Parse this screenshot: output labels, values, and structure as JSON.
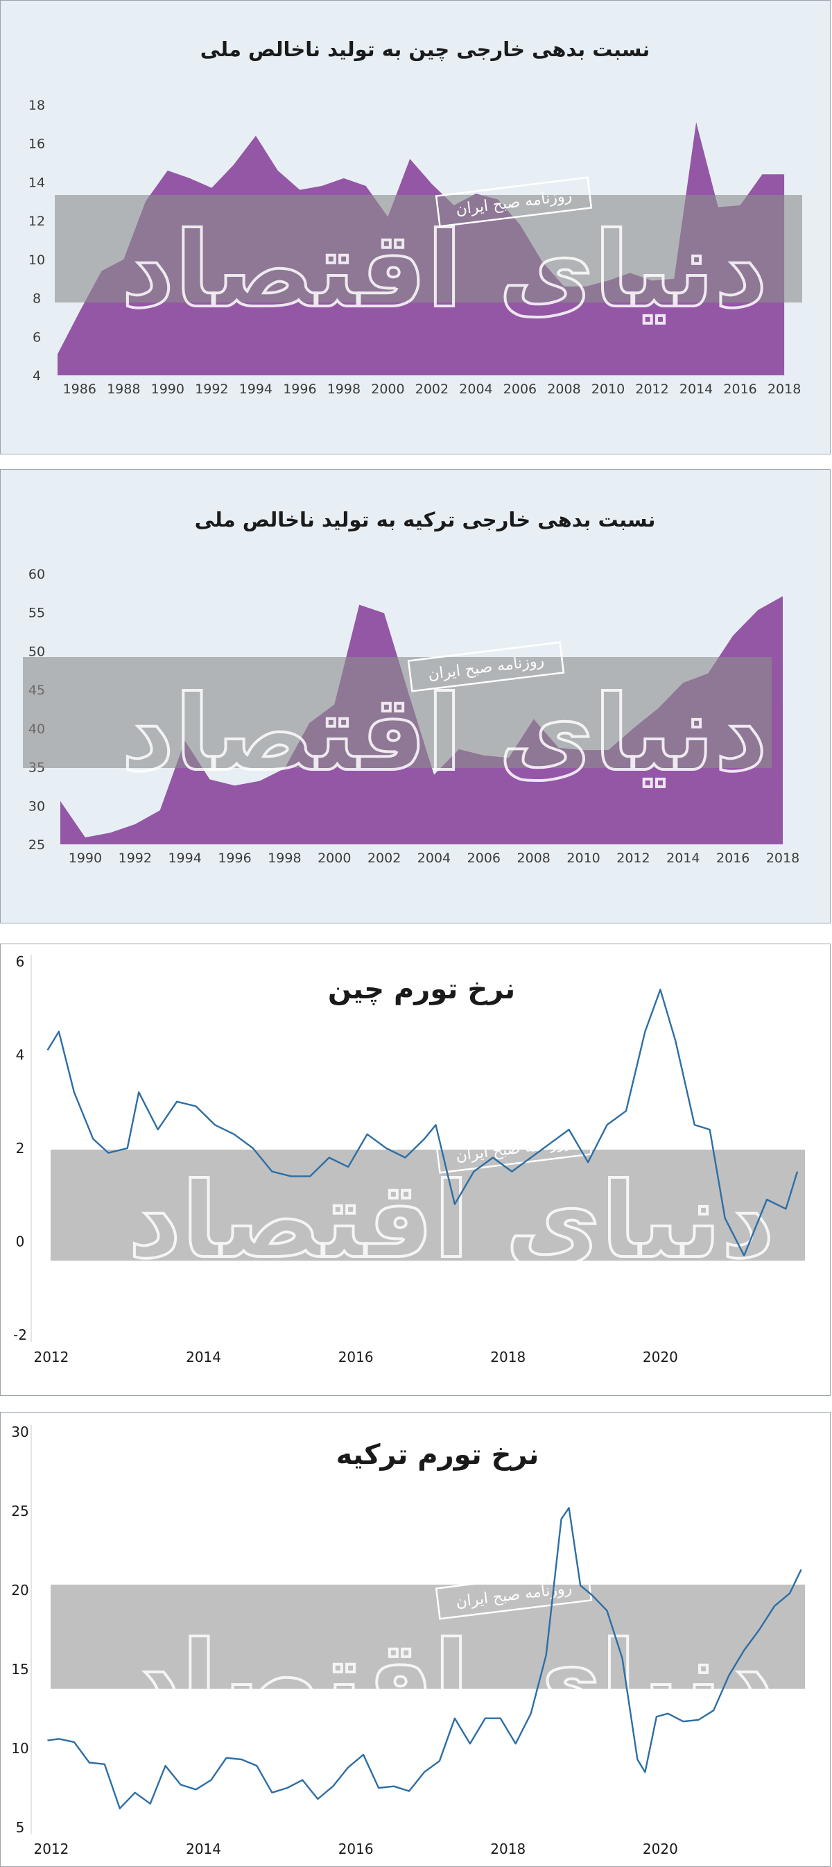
{
  "watermark": {
    "text": "دنیای اقتصاد",
    "tag": "روزنامه صبح ایران",
    "band_color": "#8c8c8c"
  },
  "chart_data": [
    {
      "type": "area",
      "title": "نسبت بدهی خارجی چین به تولید ناخالص ملی",
      "xlabel": "",
      "ylabel": "",
      "color": "#8b4a9e",
      "background": "#e8eff4",
      "ylim": [
        4,
        18
      ],
      "xlim": [
        1985,
        2018.5
      ],
      "y_ticks": [
        "4",
        "6",
        "8",
        "10",
        "12",
        "14",
        "16",
        "18"
      ],
      "x_ticks": [
        "1986",
        "1988",
        "1990",
        "1992",
        "1994",
        "1996",
        "1998",
        "2000",
        "2002",
        "2004",
        "2006",
        "2008",
        "2010",
        "2012",
        "2014",
        "2016",
        "2018"
      ],
      "x": [
        1985,
        1986,
        1987,
        1988,
        1989,
        1990,
        1991,
        1992,
        1993,
        1994,
        1995,
        1996,
        1997,
        1998,
        1999,
        2000,
        2001,
        2002,
        2003,
        2004,
        2005,
        2006,
        2007,
        2008,
        2009,
        2010,
        2011,
        2012,
        2013,
        2014,
        2015,
        2016,
        2017,
        2018
      ],
      "values": [
        5.1,
        7.3,
        9.4,
        10.0,
        13.0,
        14.6,
        14.2,
        13.7,
        14.9,
        16.4,
        14.6,
        13.6,
        13.8,
        14.2,
        13.8,
        12.2,
        15.2,
        13.9,
        12.8,
        13.4,
        13.1,
        11.8,
        9.9,
        8.6,
        8.6,
        8.9,
        9.3,
        8.9,
        9.0,
        17.1,
        12.7,
        12.8,
        14.4,
        14.4
      ]
    },
    {
      "type": "area",
      "title": "نسبت بدهی خارجی ترکیه به تولید ناخالص ملی",
      "xlabel": "",
      "ylabel": "",
      "color": "#8b4a9e",
      "background": "#e8eff4",
      "ylim": [
        25,
        60
      ],
      "xlim": [
        1989,
        2018.5
      ],
      "y_ticks": [
        "25",
        "30",
        "35",
        "40",
        "45",
        "50",
        "55",
        "60"
      ],
      "x_ticks": [
        "1990",
        "1992",
        "1994",
        "1996",
        "1998",
        "2000",
        "2002",
        "2004",
        "2006",
        "2008",
        "2010",
        "2012",
        "2014",
        "2016",
        "2018"
      ],
      "x": [
        1989,
        1990,
        1991,
        1992,
        1993,
        1994,
        1995,
        1996,
        1997,
        1998,
        1999,
        2000,
        2001,
        2002,
        2003,
        2004,
        2005,
        2006,
        2007,
        2008,
        2009,
        2010,
        2011,
        2012,
        2013,
        2014,
        2015,
        2016,
        2017,
        2018
      ],
      "values": [
        30.6,
        25.9,
        26.5,
        27.6,
        29.4,
        38.4,
        33.4,
        32.6,
        33.2,
        34.8,
        40.7,
        43.1,
        56.0,
        54.9,
        44.3,
        34.0,
        37.3,
        36.5,
        36.2,
        41.2,
        37.5,
        37.2,
        37.2,
        40.0,
        42.6,
        45.9,
        47.1,
        52.0,
        55.3,
        57.1
      ]
    },
    {
      "type": "line",
      "title": "نرخ تورم چین",
      "xlabel": "",
      "ylabel": "",
      "color": "#2d6ea5",
      "ylim": [
        -2,
        6
      ],
      "xlim": [
        2011.7,
        2021.9
      ],
      "y_ticks": [
        "-2",
        "0",
        "2",
        "4",
        "6"
      ],
      "x_ticks": [
        "2012",
        "2014",
        "2016",
        "2018",
        "2020"
      ],
      "x": [
        2011.95,
        2012.1,
        2012.3,
        2012.55,
        2012.75,
        2013.0,
        2013.15,
        2013.4,
        2013.65,
        2013.9,
        2014.15,
        2014.4,
        2014.65,
        2014.9,
        2015.15,
        2015.4,
        2015.65,
        2015.9,
        2016.15,
        2016.4,
        2016.65,
        2016.9,
        2017.05,
        2017.3,
        2017.55,
        2017.8,
        2018.05,
        2018.3,
        2018.55,
        2018.8,
        2019.05,
        2019.3,
        2019.55,
        2019.8,
        2020.0,
        2020.2,
        2020.45,
        2020.65,
        2020.85,
        2021.1,
        2021.4,
        2021.65,
        2021.8
      ],
      "values": [
        4.1,
        4.5,
        3.2,
        2.2,
        1.9,
        2.0,
        3.2,
        2.4,
        3.0,
        2.9,
        2.5,
        2.3,
        2.0,
        1.5,
        1.4,
        1.4,
        1.8,
        1.6,
        2.3,
        2.0,
        1.8,
        2.2,
        2.5,
        0.8,
        1.5,
        1.8,
        1.5,
        1.8,
        2.1,
        2.4,
        1.7,
        2.5,
        2.8,
        4.5,
        5.4,
        4.3,
        2.5,
        2.4,
        0.5,
        -0.3,
        0.9,
        0.7,
        1.5
      ]
    },
    {
      "type": "line",
      "title": "نرخ تورم ترکیه",
      "xlabel": "",
      "ylabel": "",
      "color": "#2d6ea5",
      "ylim": [
        5,
        30
      ],
      "xlim": [
        2011.7,
        2021.9
      ],
      "y_ticks": [
        "5",
        "10",
        "15",
        "20",
        "25",
        "30"
      ],
      "x_ticks": [
        "2012",
        "2014",
        "2016",
        "2018",
        "2020"
      ],
      "x": [
        2011.95,
        2012.1,
        2012.3,
        2012.5,
        2012.7,
        2012.9,
        2013.1,
        2013.3,
        2013.5,
        2013.7,
        2013.9,
        2014.1,
        2014.3,
        2014.5,
        2014.7,
        2014.9,
        2015.1,
        2015.3,
        2015.5,
        2015.7,
        2015.9,
        2016.1,
        2016.3,
        2016.5,
        2016.7,
        2016.9,
        2017.1,
        2017.3,
        2017.5,
        2017.7,
        2017.9,
        2018.1,
        2018.3,
        2018.5,
        2018.7,
        2018.8,
        2018.95,
        2019.1,
        2019.3,
        2019.5,
        2019.7,
        2019.8,
        2019.95,
        2020.1,
        2020.3,
        2020.5,
        2020.7,
        2020.9,
        2021.1,
        2021.3,
        2021.5,
        2021.7,
        2021.85
      ],
      "values": [
        10.5,
        10.6,
        10.4,
        9.1,
        9.0,
        6.2,
        7.2,
        6.5,
        8.9,
        7.7,
        7.4,
        8.0,
        9.4,
        9.3,
        8.9,
        7.2,
        7.5,
        8.0,
        6.8,
        7.6,
        8.8,
        9.6,
        7.5,
        7.6,
        7.3,
        8.5,
        9.2,
        11.9,
        10.3,
        11.9,
        11.9,
        10.3,
        12.2,
        15.9,
        24.5,
        25.2,
        20.3,
        19.7,
        18.7,
        15.7,
        9.3,
        8.5,
        12.0,
        12.2,
        11.7,
        11.8,
        12.4,
        14.6,
        16.2,
        17.5,
        19.0,
        19.8,
        21.3
      ]
    }
  ]
}
